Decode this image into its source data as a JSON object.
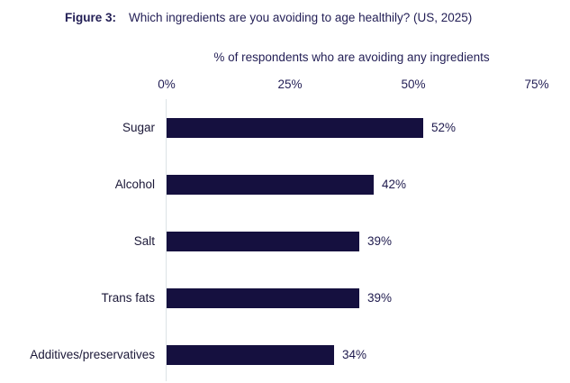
{
  "header": {
    "figure_label": "Figure 3:",
    "title": "Which ingredients are you avoiding to age healthily? (US, 2025)"
  },
  "chart_data": {
    "type": "bar",
    "orientation": "horizontal",
    "title": "Which ingredients are you avoiding to age healthily? (US, 2025)",
    "subtitle": "% of respondents who are avoiding any ingredients",
    "categories": [
      "Sugar",
      "Alcohol",
      "Salt",
      "Trans fats",
      "Additives/preservatives"
    ],
    "values": [
      52,
      42,
      39,
      39,
      34
    ],
    "value_labels": [
      "52%",
      "42%",
      "39%",
      "39%",
      "34%"
    ],
    "x_ticks": [
      "0%",
      "25%",
      "50%",
      "75%"
    ],
    "x_tick_values": [
      0,
      25,
      50,
      75
    ],
    "xlim": [
      0,
      75
    ],
    "grid": "off",
    "legend": "none",
    "bar_color": "#15103F",
    "axis_line_color": "#DCE3E6",
    "text_color": "#221E55"
  }
}
